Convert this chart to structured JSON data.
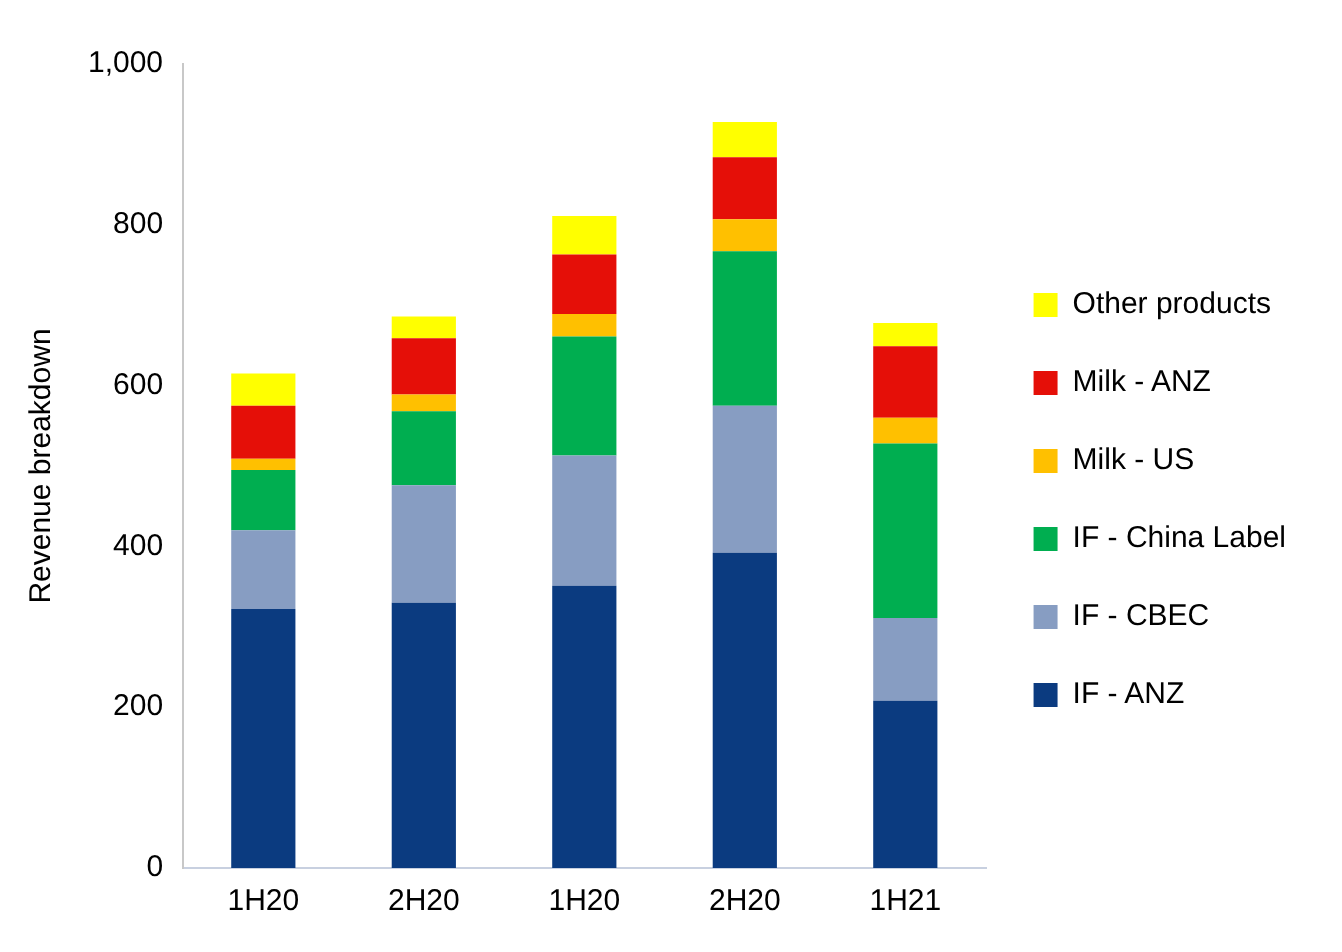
{
  "chart_data": {
    "type": "bar",
    "stacked": true,
    "ylabel": "Revenue breakdown",
    "categories": [
      "1H20",
      "2H20",
      "1H20",
      "2H20",
      "1H21"
    ],
    "series": [
      {
        "name": "IF - ANZ",
        "color": "#0b3b80",
        "values": [
          322,
          330,
          351,
          392,
          208
        ]
      },
      {
        "name": "IF - CBEC",
        "color": "#879dc2",
        "values": [
          98,
          146,
          162,
          183,
          103
        ]
      },
      {
        "name": "IF - China Label",
        "color": "#00ae50",
        "values": [
          75,
          92,
          148,
          192,
          217
        ]
      },
      {
        "name": "Milk - US",
        "color": "#ffc000",
        "values": [
          14,
          21,
          28,
          40,
          32
        ]
      },
      {
        "name": "Milk - ANZ",
        "color": "#e50f08",
        "values": [
          66,
          70,
          74,
          77,
          89
        ]
      },
      {
        "name": "Other products",
        "color": "#ffff00",
        "values": [
          40,
          27,
          48,
          44,
          29
        ]
      }
    ],
    "ylim": [
      0,
      1000
    ],
    "yticks": [
      0,
      {
        "value": 200,
        "label": "200"
      },
      400,
      600,
      800,
      {
        "value": 1000,
        "label": "1,000"
      }
    ],
    "grid": false,
    "legend": "right"
  }
}
